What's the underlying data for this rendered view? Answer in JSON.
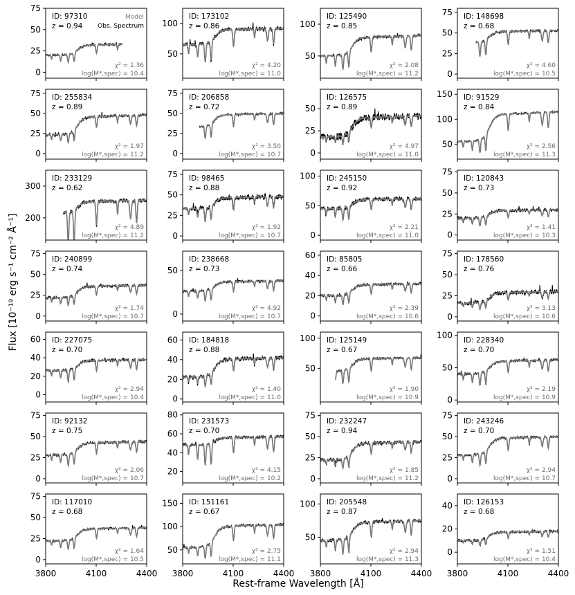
{
  "figure": {
    "ylabel": "Flux [10⁻¹⁹ erg s⁻¹ cm⁻² Å⁻¹]",
    "xlabel": "Rest-frame Wavelength [Å]",
    "legend": {
      "model": "Model",
      "observed": "Obs. Spectrum"
    },
    "colors": {
      "model": "#7a7a7a",
      "observed": "#000000",
      "stats": "#6b6b6b"
    }
  },
  "chart_data": {
    "type": "line",
    "xlim": [
      3800,
      4400
    ],
    "xticks": [
      3800,
      4100,
      4400
    ],
    "series_names": [
      "Model",
      "Obs. Spectrum"
    ],
    "panels": [
      {
        "id": "ID: 97310",
        "z": "z = 0.94",
        "chi2": "χ² = 1.36",
        "logm": "log(M*,spec) = 10.4",
        "ylim": [
          -7,
          75
        ],
        "yticks": [
          0,
          25,
          50,
          75
        ],
        "x_start": 3800,
        "x_end": 4255,
        "level": [
          20,
          33
        ],
        "noise": 1.2,
        "mnoise": 0.3
      },
      {
        "id": "ID: 173102",
        "z": "z = 0.86",
        "chi2": "χ² = 4.20",
        "logm": "log(M*,spec) = 11.0",
        "ylim": [
          10,
          125
        ],
        "yticks": [
          50,
          100
        ],
        "x_start": 3800,
        "x_end": 4400,
        "level": [
          65,
          92
        ],
        "noise": 3.0,
        "mnoise": 0.8
      },
      {
        "id": "ID: 125490",
        "z": "z = 0.85",
        "chi2": "χ² = 2.08",
        "logm": "log(M*,spec) = 11.2",
        "ylim": [
          15,
          125
        ],
        "yticks": [
          50,
          100
        ],
        "x_start": 3800,
        "x_end": 4400,
        "level": [
          50,
          82
        ],
        "noise": 2.0,
        "mnoise": 0.5
      },
      {
        "id": "ID: 148698",
        "z": "z = 0.68",
        "chi2": "χ² = 4.60",
        "logm": "log(M*,spec) = 10.5",
        "ylim": [
          -5,
          80
        ],
        "yticks": [
          0,
          25,
          50,
          75
        ],
        "x_start": 3910,
        "x_end": 4400,
        "level": [
          38,
          53
        ],
        "noise": 1.5,
        "mnoise": 0.4
      },
      {
        "id": "ID: 255834",
        "z": "z = 0.89",
        "chi2": "χ² = 1.97",
        "logm": "log(M*,spec) = 11.2",
        "ylim": [
          -7,
          80
        ],
        "yticks": [
          0,
          25,
          50,
          75
        ],
        "x_start": 3800,
        "x_end": 4400,
        "level": [
          23,
          48
        ],
        "noise": 1.6,
        "mnoise": 0.4
      },
      {
        "id": "ID: 206858",
        "z": "z = 0.72",
        "chi2": "χ² = 3.50",
        "logm": "log(M*,spec) = 10.7",
        "ylim": [
          -7,
          80
        ],
        "yticks": [
          0,
          25,
          50,
          75
        ],
        "x_start": 3900,
        "x_end": 4400,
        "level": [
          33,
          50
        ],
        "noise": 1.2,
        "mnoise": 0.3
      },
      {
        "id": "ID: 126575",
        "z": "z = 0.89",
        "chi2": "χ² = 4.97",
        "logm": "log(M*,spec) = 11.0",
        "ylim": [
          -7,
          72
        ],
        "yticks": [
          0,
          25,
          50
        ],
        "x_start": 3800,
        "x_end": 4400,
        "level": [
          18,
          42
        ],
        "noise": 4.0,
        "mnoise": 0.6
      },
      {
        "id": "ID: 91529",
        "z": "z = 0.84",
        "chi2": "χ² = 2.56",
        "logm": "log(M*,spec) = 11.3",
        "ylim": [
          20,
          160
        ],
        "yticks": [
          50,
          100,
          150
        ],
        "x_start": 3800,
        "x_end": 4400,
        "level": [
          55,
          115
        ],
        "noise": 2.0,
        "mnoise": 0.6
      },
      {
        "id": "ID: 233129",
        "z": "z = 0.62",
        "chi2": "χ² = 4.89",
        "logm": "log(M*,spec) = 11.2",
        "ylim": [
          130,
          350
        ],
        "yticks": [
          200,
          300
        ],
        "x_start": 3905,
        "x_end": 4400,
        "level": [
          215,
          255
        ],
        "noise": 6.0,
        "mnoise": 1.5
      },
      {
        "id": "ID: 98465",
        "z": "z = 0.88",
        "chi2": "χ² = 1.92",
        "logm": "log(M*,spec) = 10.7",
        "ylim": [
          -5,
          80
        ],
        "yticks": [
          0,
          25,
          50,
          75
        ],
        "x_start": 3800,
        "x_end": 4400,
        "level": [
          33,
          48
        ],
        "noise": 3.0,
        "mnoise": 0.5
      },
      {
        "id": "ID: 245150",
        "z": "z = 0.92",
        "chi2": "χ² = 2.21",
        "logm": "log(M*,spec) = 11.0",
        "ylim": [
          -8,
          110
        ],
        "yticks": [
          0,
          50,
          100
        ],
        "x_start": 3800,
        "x_end": 4400,
        "level": [
          45,
          62
        ],
        "noise": 3.5,
        "mnoise": 0.6
      },
      {
        "id": "ID: 120843",
        "z": "z = 0.73",
        "chi2": "χ² = 1.41",
        "logm": "log(M*,spec) = 10.3",
        "ylim": [
          -6,
          77
        ],
        "yticks": [
          0,
          25,
          50,
          75
        ],
        "x_start": 3800,
        "x_end": 4400,
        "level": [
          20,
          30
        ],
        "noise": 1.8,
        "mnoise": 0.3
      },
      {
        "id": "ID: 240899",
        "z": "z = 0.74",
        "chi2": "χ² = 1.74",
        "logm": "log(M*,spec) = 10.7",
        "ylim": [
          -6,
          78
        ],
        "yticks": [
          0,
          25,
          50,
          75
        ],
        "x_start": 3800,
        "x_end": 4400,
        "level": [
          22,
          37
        ],
        "noise": 1.5,
        "mnoise": 0.3
      },
      {
        "id": "ID: 238668",
        "z": "z = 0.73",
        "chi2": "χ² = 4.92",
        "logm": "log(M*,spec) = 10.7",
        "ylim": [
          -8,
          72
        ],
        "yticks": [
          0,
          50
        ],
        "x_start": 3800,
        "x_end": 4400,
        "level": [
          26,
          38
        ],
        "noise": 1.4,
        "mnoise": 0.3
      },
      {
        "id": "ID: 85805",
        "z": "z = 0.66",
        "chi2": "χ² = 2.39",
        "logm": "log(M*,spec) = 10.6",
        "ylim": [
          -5,
          64
        ],
        "yticks": [
          0,
          20,
          40,
          60
        ],
        "x_start": 3800,
        "x_end": 4400,
        "level": [
          20,
          32
        ],
        "noise": 1.2,
        "mnoise": 0.3
      },
      {
        "id": "ID: 178560",
        "z": "z = 0.76",
        "chi2": "χ² = 3.13",
        "logm": "log(M*,spec) = 10.6",
        "ylim": [
          -5,
          78
        ],
        "yticks": [
          0,
          25,
          50,
          75
        ],
        "x_start": 3800,
        "x_end": 4400,
        "level": [
          16,
          30
        ],
        "noise": 2.5,
        "mnoise": 0.3
      },
      {
        "id": "ID: 227075",
        "z": "z = 0.70",
        "chi2": "χ² = 2.94",
        "logm": "log(M*,spec) = 10.4",
        "ylim": [
          -8,
          68
        ],
        "yticks": [
          0,
          20,
          40,
          60
        ],
        "x_start": 3800,
        "x_end": 4400,
        "level": [
          26,
          38
        ],
        "noise": 1.5,
        "mnoise": 0.3
      },
      {
        "id": "ID: 184818",
        "z": "z = 0.88",
        "chi2": "χ² = 1.40",
        "logm": "log(M*,spec) = 11.0",
        "ylim": [
          -3,
          68
        ],
        "yticks": [
          0,
          20,
          40,
          60
        ],
        "x_start": 3800,
        "x_end": 4400,
        "level": [
          22,
          42
        ],
        "noise": 2.0,
        "mnoise": 0.4
      },
      {
        "id": "ID: 125149",
        "z": "z = 0.67",
        "chi2": "χ² = 1.90",
        "logm": "log(M*,spec) = 10.9",
        "ylim": [
          -5,
          110
        ],
        "yticks": [
          50,
          100
        ],
        "x_start": 3890,
        "x_end": 4400,
        "level": [
          45,
          68
        ],
        "noise": 1.8,
        "mnoise": 0.4
      },
      {
        "id": "ID: 228340",
        "z": "z = 0.70",
        "chi2": "χ² = 2.19",
        "logm": "log(M*,spec) = 10.9",
        "ylim": [
          -3,
          105
        ],
        "yticks": [
          0,
          50,
          100
        ],
        "x_start": 3800,
        "x_end": 4400,
        "level": [
          40,
          62
        ],
        "noise": 2.0,
        "mnoise": 0.4
      },
      {
        "id": "ID: 92132",
        "z": "z = 0.75",
        "chi2": "χ² = 2.06",
        "logm": "log(M*,spec) = 10.7",
        "ylim": [
          -5,
          78
        ],
        "yticks": [
          0,
          25,
          50,
          75
        ],
        "x_start": 3800,
        "x_end": 4400,
        "level": [
          28,
          44
        ],
        "noise": 1.5,
        "mnoise": 0.3
      },
      {
        "id": "ID: 231573",
        "z": "z = 0.70",
        "chi2": "χ² = 4.15",
        "logm": "log(M*,spec) = 10.2",
        "ylim": [
          8,
          82
        ],
        "yticks": [
          20,
          40,
          60,
          80
        ],
        "x_start": 3800,
        "x_end": 4400,
        "level": [
          48,
          57
        ],
        "noise": 1.5,
        "mnoise": 0.3
      },
      {
        "id": "ID: 232247",
        "z": "z = 0.94",
        "chi2": "χ² = 1.85",
        "logm": "log(M*,spec) = 11.2",
        "ylim": [
          -5,
          78
        ],
        "yticks": [
          0,
          25,
          50,
          75
        ],
        "x_start": 3800,
        "x_end": 4400,
        "level": [
          22,
          44
        ],
        "noise": 2.2,
        "mnoise": 0.4
      },
      {
        "id": "ID: 243246",
        "z": "z = 0.70",
        "chi2": "χ² = 2.94",
        "logm": "log(M*,spec) = 10.7",
        "ylim": [
          -5,
          78
        ],
        "yticks": [
          0,
          25,
          50,
          75
        ],
        "x_start": 3800,
        "x_end": 4400,
        "level": [
          28,
          50
        ],
        "noise": 1.3,
        "mnoise": 0.3
      },
      {
        "id": "ID: 117010",
        "z": "z = 0.68",
        "chi2": "χ² = 1.64",
        "logm": "log(M*,spec) = 10.5",
        "ylim": [
          -5,
          78
        ],
        "yticks": [
          0,
          25,
          50,
          75
        ],
        "x_start": 3800,
        "x_end": 4400,
        "level": [
          22,
          38
        ],
        "noise": 1.2,
        "mnoise": 0.3
      },
      {
        "id": "ID: 151161",
        "z": "z = 0.67",
        "chi2": "χ² = 2.75",
        "logm": "log(M*,spec) = 11.1",
        "ylim": [
          20,
          170
        ],
        "yticks": [
          50,
          100,
          150
        ],
        "x_start": 3800,
        "x_end": 4400,
        "level": [
          55,
          105
        ],
        "noise": 2.5,
        "mnoise": 0.5
      },
      {
        "id": "ID: 205548",
        "z": "z = 0.87",
        "chi2": "χ² = 2.94",
        "logm": "log(M*,spec) = 11.3",
        "ylim": [
          10,
          115
        ],
        "yticks": [
          50,
          100
        ],
        "x_start": 3800,
        "x_end": 4400,
        "level": [
          45,
          75
        ],
        "noise": 2.5,
        "mnoise": 0.5
      },
      {
        "id": "ID: 126153",
        "z": "z = 0.68",
        "chi2": "χ² = 1.51",
        "logm": "log(M*,spec) = 10.4",
        "ylim": [
          -10,
          50
        ],
        "yticks": [
          0,
          20,
          40
        ],
        "x_start": 3800,
        "x_end": 4400,
        "level": [
          10,
          18
        ],
        "noise": 1.0,
        "mnoise": 0.2
      }
    ]
  }
}
